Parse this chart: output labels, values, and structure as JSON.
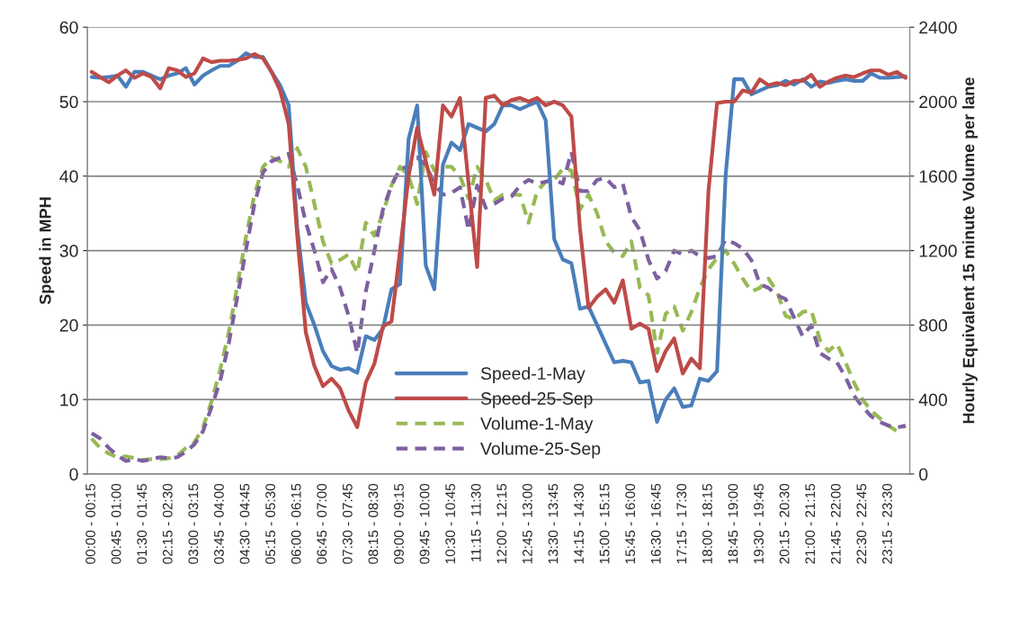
{
  "chart_data": {
    "type": "line",
    "ylabel": "Speed in MPH",
    "y2label": "Hourly Equivalent 15 minute Volume per lane",
    "categories": [
      "00:00 - 00:15",
      null,
      null,
      "00:45 - 01:00",
      null,
      null,
      "01:30 - 01:45",
      null,
      null,
      "02:15 - 02:30",
      null,
      null,
      "03:00 - 03:15",
      null,
      null,
      "03:45 - 04:00",
      null,
      null,
      "04:30 - 04:45",
      null,
      null,
      "05:15 - 05:30",
      null,
      null,
      "06:00 - 06:15",
      null,
      null,
      "06:45 - 07:00",
      null,
      null,
      "07:30 - 07:45",
      null,
      null,
      "08:15 - 08:30",
      null,
      null,
      "09:00 - 09:15",
      null,
      null,
      "09:45 - 10:00",
      null,
      null,
      "10:30 - 10:45",
      null,
      null,
      "11:15 - 11:30",
      null,
      null,
      "12:00 - 12:15",
      null,
      null,
      "12:45 - 13:00",
      null,
      null,
      "13:30 - 13:45",
      null,
      null,
      "14:15 - 14:30",
      null,
      null,
      "15:00 - 15:15",
      null,
      null,
      "15:45 - 16:00",
      null,
      null,
      "16:30 - 16:45",
      null,
      null,
      "17:15 - 17:30",
      null,
      null,
      "18:00 - 18:15",
      null,
      null,
      "18:45 - 19:00",
      null,
      null,
      "19:30 - 19:45",
      null,
      null,
      "20:15 - 20:30",
      null,
      null,
      "21:00 - 21:15",
      null,
      null,
      "21:45 - 22:00",
      null,
      null,
      "22:30 - 22:45",
      null,
      null,
      "23:15 - 23:30",
      null,
      null
    ],
    "series": [
      {
        "name": "Speed-1-May",
        "color": "#4a7ebb",
        "line_style": "solid",
        "values": [
          53.3,
          53.2,
          53.3,
          53.5,
          52,
          54,
          54,
          53.5,
          53,
          53.5,
          53.8,
          54.5,
          52.3,
          53.5,
          54.2,
          54.8,
          54.8,
          55.5,
          56.5,
          56,
          56,
          54,
          52.2,
          49.5,
          33,
          23,
          20,
          16.5,
          14.5,
          14,
          14.2,
          13.6,
          18.5,
          18,
          19.5,
          24.8,
          25.5,
          45,
          49.5,
          28,
          24.8,
          41.5,
          44.5,
          43.5,
          47,
          46.5,
          46,
          47,
          49.5,
          49.5,
          49,
          49.5,
          50,
          47.5,
          31.5,
          28.8,
          28.3,
          22.2,
          22.5,
          20,
          17.5,
          15,
          15.2,
          15,
          12.3,
          12.5,
          7,
          10,
          11.5,
          9,
          9.2,
          12.8,
          12.5,
          13.8,
          40,
          53,
          53,
          51,
          51.5,
          52,
          52.2,
          52.8,
          52.3,
          53,
          52,
          52.7,
          52.5,
          52.8,
          53,
          52.8,
          52.8,
          53.8,
          53.2,
          53.2,
          53.3,
          53.4
        ]
      },
      {
        "name": "Speed-25-Sep",
        "color": "#be4b48",
        "line_style": "solid",
        "values": [
          54,
          53.3,
          52.6,
          53.5,
          54.2,
          53.2,
          53.8,
          53.3,
          51.8,
          54.5,
          54.2,
          53.3,
          53.8,
          55.8,
          55.3,
          55.5,
          55.5,
          55.6,
          55.8,
          56.4,
          55.8,
          54,
          51.5,
          47,
          32,
          19,
          14.5,
          11.8,
          12.8,
          11.5,
          8.5,
          6.3,
          12.3,
          14.8,
          19.8,
          20.5,
          30,
          40,
          46.5,
          42,
          37.5,
          49.5,
          48,
          50.5,
          39,
          27.8,
          50.5,
          50.8,
          49.5,
          50.2,
          50.5,
          50,
          50.5,
          49.5,
          50,
          49.5,
          48,
          33,
          22.3,
          23.8,
          24.8,
          23,
          26,
          19.5,
          20.2,
          19.5,
          13.8,
          16.5,
          18.2,
          13.5,
          15.5,
          14.2,
          38,
          49.8,
          50,
          50,
          51.5,
          51.2,
          53,
          52.2,
          52.5,
          52.2,
          52.8,
          52.8,
          53.6,
          52,
          52.7,
          53.2,
          53.5,
          53.3,
          53.8,
          54.2,
          54.2,
          53.6,
          54,
          53.2
        ]
      },
      {
        "name": "Volume-1-May",
        "color": "#98b954",
        "line_style": "dashed",
        "axis": "y2",
        "values": [
          190,
          140,
          110,
          90,
          95,
          85,
          75,
          80,
          80,
          85,
          100,
          140,
          170,
          250,
          390,
          560,
          760,
          1010,
          1270,
          1500,
          1650,
          1700,
          1680,
          1650,
          1750,
          1650,
          1450,
          1250,
          1130,
          1150,
          1180,
          1080,
          1350,
          1280,
          1400,
          1550,
          1650,
          1600,
          1450,
          1730,
          1630,
          1650,
          1650,
          1600,
          1480,
          1650,
          1580,
          1470,
          1500,
          1500,
          1500,
          1350,
          1520,
          1570,
          1580,
          1640,
          1630,
          1420,
          1500,
          1400,
          1250,
          1190,
          1170,
          1250,
          1000,
          960,
          650,
          860,
          900,
          770,
          870,
          1000,
          1100,
          1160,
          1200,
          1130,
          1050,
          980,
          1000,
          1050,
          980,
          850,
          830,
          870,
          880,
          720,
          660,
          700,
          600,
          490,
          400,
          340,
          300,
          260,
          230,
          260
        ]
      },
      {
        "name": "Volume-25-Sep",
        "color": "#7d60a0",
        "line_style": "dashed",
        "axis": "y2",
        "values": [
          220,
          190,
          140,
          100,
          70,
          80,
          70,
          80,
          90,
          85,
          90,
          120,
          160,
          230,
          360,
          500,
          700,
          950,
          1200,
          1450,
          1620,
          1680,
          1700,
          1720,
          1550,
          1350,
          1200,
          1030,
          1100,
          1000,
          850,
          650,
          980,
          1200,
          1420,
          1550,
          1640,
          1650,
          1700,
          1660,
          1560,
          1500,
          1510,
          1540,
          1310,
          1550,
          1430,
          1450,
          1480,
          1490,
          1550,
          1580,
          1560,
          1570,
          1580,
          1560,
          1730,
          1520,
          1520,
          1580,
          1590,
          1540,
          1560,
          1380,
          1310,
          1150,
          1050,
          1090,
          1200,
          1180,
          1200,
          1170,
          1160,
          1170,
          1260,
          1240,
          1210,
          1150,
          1020,
          1000,
          960,
          940,
          840,
          740,
          800,
          650,
          620,
          600,
          520,
          420,
          360,
          310,
          280,
          260,
          250,
          260
        ]
      }
    ],
    "ylim": [
      0,
      60
    ],
    "yticks": [
      0,
      10,
      20,
      30,
      40,
      50,
      60
    ],
    "y2lim": [
      0,
      2400
    ],
    "y2ticks": [
      0,
      400,
      800,
      1200,
      1600,
      2000,
      2400
    ],
    "grid": "y",
    "legend": "bottom"
  }
}
